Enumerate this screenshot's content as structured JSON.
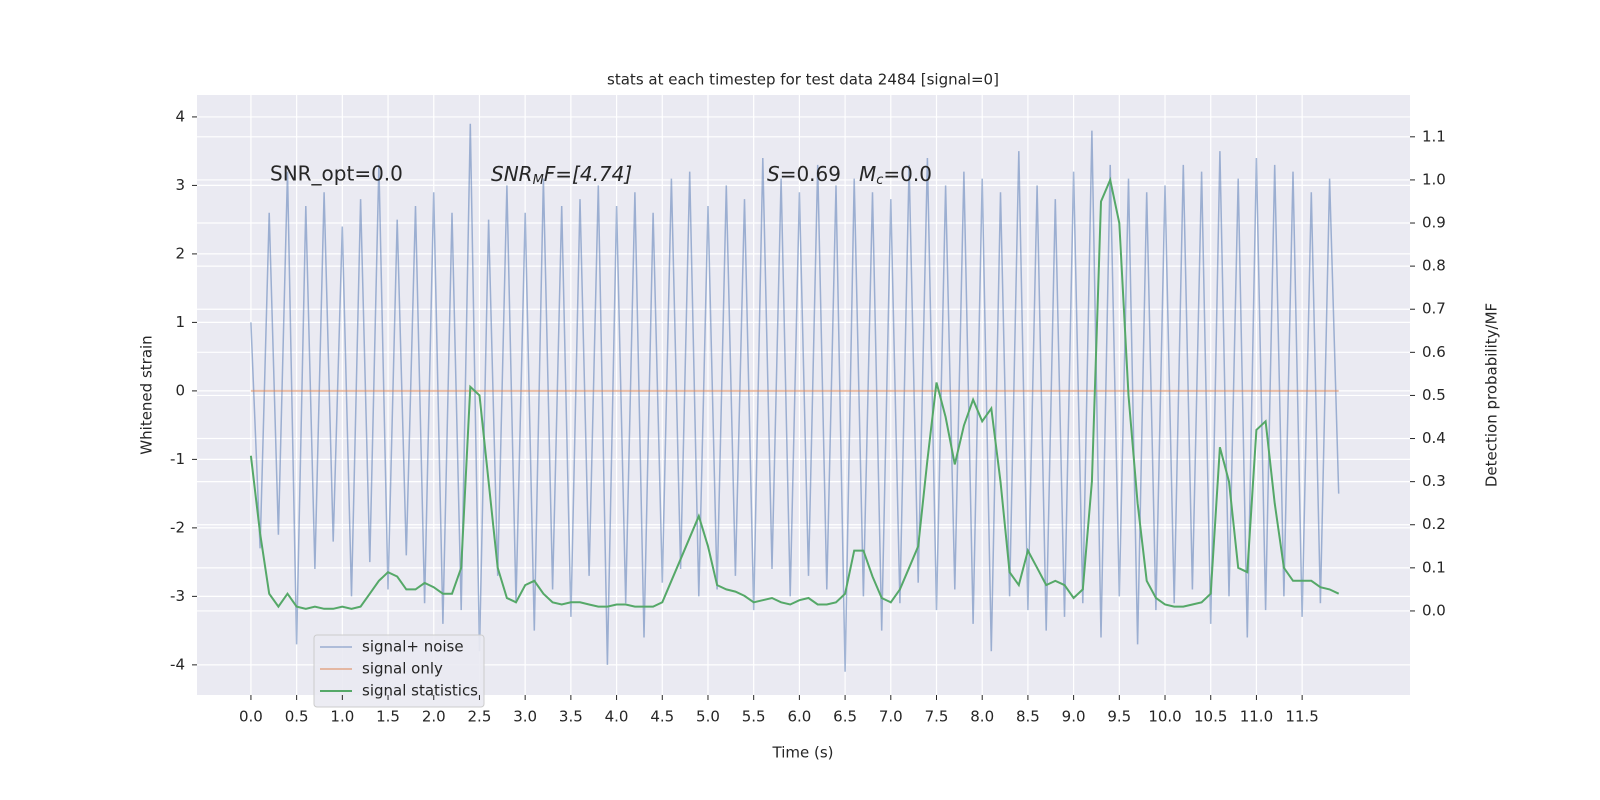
{
  "chart_data": {
    "type": "line",
    "title": "stats at each timestep for test data 2484 [signal=0]",
    "xlabel": "Time (s)",
    "ylabel": "Whitened strain",
    "y2label": "Detection probability/MF",
    "annotations": [
      {
        "text": "SNR_opt=0.0"
      },
      {
        "main": "SNR",
        "sub": "M",
        "rest": "F=[4.74]"
      },
      {
        "main": "S",
        "rest": "=0.69"
      },
      {
        "main": "M",
        "sub": "c",
        "rest": "=0.0"
      }
    ],
    "grid": true,
    "legend": "lower left",
    "xlim": [
      -0.59,
      12.68
    ],
    "ylim": [
      -4.44,
      4.32
    ],
    "y2lim": [
      -0.195,
      1.197
    ],
    "xticks": [
      {
        "value": 0,
        "label": "0.0"
      },
      {
        "value": 0.5,
        "label": "0.5"
      },
      {
        "value": 1,
        "label": "1.0"
      },
      {
        "value": 1.5,
        "label": "1.5"
      },
      {
        "value": 2,
        "label": "2.0"
      },
      {
        "value": 2.5,
        "label": "2.5"
      },
      {
        "value": 3,
        "label": "3.0"
      },
      {
        "value": 3.5,
        "label": "3.5"
      },
      {
        "value": 4,
        "label": "4.0"
      },
      {
        "value": 4.5,
        "label": "4.5"
      },
      {
        "value": 5,
        "label": "5.0"
      },
      {
        "value": 5.5,
        "label": "5.5"
      },
      {
        "value": 6,
        "label": "6.0"
      },
      {
        "value": 6.5,
        "label": "6.5"
      },
      {
        "value": 7,
        "label": "7.0"
      },
      {
        "value": 7.5,
        "label": "7.5"
      },
      {
        "value": 8,
        "label": "8.0"
      },
      {
        "value": 8.5,
        "label": "8.5"
      },
      {
        "value": 9,
        "label": "9.0"
      },
      {
        "value": 9.5,
        "label": "9.5"
      },
      {
        "value": 10,
        "label": "10.0"
      },
      {
        "value": 10.5,
        "label": "10.5"
      },
      {
        "value": 11,
        "label": "11.0"
      },
      {
        "value": 11.5,
        "label": "11.5"
      }
    ],
    "yticks": [
      -4,
      -3,
      -2,
      -1,
      0,
      1,
      2,
      3,
      4
    ],
    "y2ticks": [
      {
        "value": 0,
        "label": "0.0"
      },
      {
        "value": 0.1,
        "label": "0.1"
      },
      {
        "value": 0.2,
        "label": "0.2"
      },
      {
        "value": 0.3,
        "label": "0.3"
      },
      {
        "value": 0.4,
        "label": "0.4"
      },
      {
        "value": 0.5,
        "label": "0.5"
      },
      {
        "value": 0.6,
        "label": "0.6"
      },
      {
        "value": 0.7,
        "label": "0.7"
      },
      {
        "value": 0.8,
        "label": "0.8"
      },
      {
        "value": 0.9,
        "label": "0.9"
      },
      {
        "value": 1,
        "label": "1.0"
      },
      {
        "value": 1.1,
        "label": "1.1"
      }
    ],
    "x": [
      0,
      0.1,
      0.2,
      0.3,
      0.4,
      0.5,
      0.6,
      0.7,
      0.8,
      0.9,
      1,
      1.1,
      1.2,
      1.3,
      1.4,
      1.5,
      1.6,
      1.7,
      1.8,
      1.9,
      2,
      2.1,
      2.2,
      2.3,
      2.4,
      2.5,
      2.6,
      2.7,
      2.8,
      2.9,
      3,
      3.1,
      3.2,
      3.3,
      3.4,
      3.5,
      3.6,
      3.7,
      3.8,
      3.9,
      4,
      4.1,
      4.2,
      4.3,
      4.4,
      4.5,
      4.6,
      4.7,
      4.8,
      4.9,
      5,
      5.1,
      5.2,
      5.3,
      5.4,
      5.5,
      5.6,
      5.7,
      5.8,
      5.9,
      6,
      6.1,
      6.2,
      6.3,
      6.4,
      6.5,
      6.6,
      6.7,
      6.8,
      6.9,
      7,
      7.1,
      7.2,
      7.3,
      7.4,
      7.5,
      7.6,
      7.7,
      7.8,
      7.9,
      8,
      8.1,
      8.2,
      8.3,
      8.4,
      8.5,
      8.6,
      8.7,
      8.8,
      8.9,
      9,
      9.1,
      9.2,
      9.3,
      9.4,
      9.5,
      9.6,
      9.7,
      9.8,
      9.9,
      10,
      10.1,
      10.2,
      10.3,
      10.4,
      10.5,
      10.6,
      10.7,
      10.8,
      10.9,
      11,
      11.1,
      11.2,
      11.3,
      11.4,
      11.5,
      11.6,
      11.7,
      11.8,
      11.9
    ],
    "series": [
      {
        "name": "signal+ noise",
        "color": "#4c72b0",
        "values": [
          1.0,
          -2.3,
          2.6,
          -2.1,
          3.2,
          -3.7,
          2.7,
          -2.6,
          2.9,
          -2.2,
          2.4,
          -3.0,
          2.8,
          -2.5,
          3.3,
          -2.9,
          2.5,
          -2.4,
          2.7,
          -3.1,
          2.9,
          -3.4,
          2.6,
          -3.2,
          3.9,
          -3.8,
          2.5,
          -2.7,
          3.0,
          -3.1,
          2.6,
          -3.5,
          3.1,
          -2.9,
          2.7,
          -3.3,
          2.8,
          -2.7,
          3.0,
          -4.0,
          2.7,
          -3.1,
          2.9,
          -3.6,
          2.6,
          -2.8,
          3.1,
          -2.6,
          3.2,
          -3.0,
          2.7,
          -2.9,
          3.0,
          -2.7,
          2.8,
          -3.2,
          3.4,
          -2.6,
          3.1,
          -3.0,
          2.9,
          -2.7,
          3.3,
          -2.9,
          3.0,
          -4.1,
          3.1,
          -3.0,
          2.9,
          -3.5,
          2.8,
          -3.1,
          3.3,
          -2.8,
          3.4,
          -3.2,
          3.0,
          -2.9,
          3.2,
          -3.4,
          3.1,
          -3.8,
          2.9,
          -3.0,
          3.5,
          -3.2,
          3.0,
          -3.5,
          2.8,
          -3.3,
          3.2,
          -3.1,
          3.8,
          -3.6,
          3.3,
          -3.0,
          3.1,
          -3.7,
          2.9,
          -3.2,
          3.0,
          -3.1,
          3.3,
          -2.9,
          3.2,
          -3.4,
          3.5,
          -3.0,
          3.1,
          -3.6,
          3.4,
          -3.2,
          3.3,
          -3.0,
          3.2,
          -3.3,
          2.9,
          -3.1,
          3.1,
          -1.5
        ]
      },
      {
        "name": "signal only",
        "color": "#dd8452",
        "values": [
          0,
          0,
          0,
          0,
          0,
          0,
          0,
          0,
          0,
          0,
          0,
          0,
          0,
          0,
          0,
          0,
          0,
          0,
          0,
          0,
          0,
          0,
          0,
          0,
          0,
          0,
          0,
          0,
          0,
          0,
          0,
          0,
          0,
          0,
          0,
          0,
          0,
          0,
          0,
          0,
          0,
          0,
          0,
          0,
          0,
          0,
          0,
          0,
          0,
          0,
          0,
          0,
          0,
          0,
          0,
          0,
          0,
          0,
          0,
          0,
          0,
          0,
          0,
          0,
          0,
          0,
          0,
          0,
          0,
          0,
          0,
          0,
          0,
          0,
          0,
          0,
          0,
          0,
          0,
          0,
          0,
          0,
          0,
          0,
          0,
          0,
          0,
          0,
          0,
          0,
          0,
          0,
          0,
          0,
          0,
          0,
          0,
          0,
          0,
          0,
          0,
          0,
          0,
          0,
          0,
          0,
          0,
          0,
          0,
          0,
          0,
          0,
          0,
          0,
          0,
          0,
          0,
          0,
          0,
          0
        ]
      },
      {
        "name": "signal statistics",
        "color": "#55a868",
        "axis": "y2",
        "values": [
          0.36,
          0.18,
          0.04,
          0.01,
          0.04,
          0.01,
          0.005,
          0.01,
          0.005,
          0.005,
          0.01,
          0.005,
          0.01,
          0.04,
          0.07,
          0.09,
          0.08,
          0.05,
          0.05,
          0.065,
          0.055,
          0.04,
          0.04,
          0.1,
          0.52,
          0.5,
          0.3,
          0.1,
          0.03,
          0.02,
          0.06,
          0.07,
          0.04,
          0.02,
          0.015,
          0.02,
          0.02,
          0.015,
          0.01,
          0.01,
          0.015,
          0.015,
          0.01,
          0.01,
          0.01,
          0.02,
          0.07,
          0.12,
          0.17,
          0.22,
          0.15,
          0.06,
          0.05,
          0.045,
          0.035,
          0.02,
          0.025,
          0.03,
          0.02,
          0.015,
          0.025,
          0.03,
          0.015,
          0.015,
          0.02,
          0.04,
          0.14,
          0.14,
          0.08,
          0.03,
          0.02,
          0.05,
          0.1,
          0.15,
          0.35,
          0.53,
          0.45,
          0.34,
          0.43,
          0.49,
          0.44,
          0.47,
          0.3,
          0.09,
          0.06,
          0.14,
          0.1,
          0.06,
          0.07,
          0.06,
          0.03,
          0.05,
          0.3,
          0.95,
          1.0,
          0.9,
          0.5,
          0.25,
          0.07,
          0.03,
          0.015,
          0.01,
          0.01,
          0.015,
          0.02,
          0.04,
          0.38,
          0.3,
          0.1,
          0.09,
          0.42,
          0.44,
          0.25,
          0.1,
          0.07,
          0.07,
          0.07,
          0.055,
          0.05,
          0.04
        ]
      }
    ]
  }
}
